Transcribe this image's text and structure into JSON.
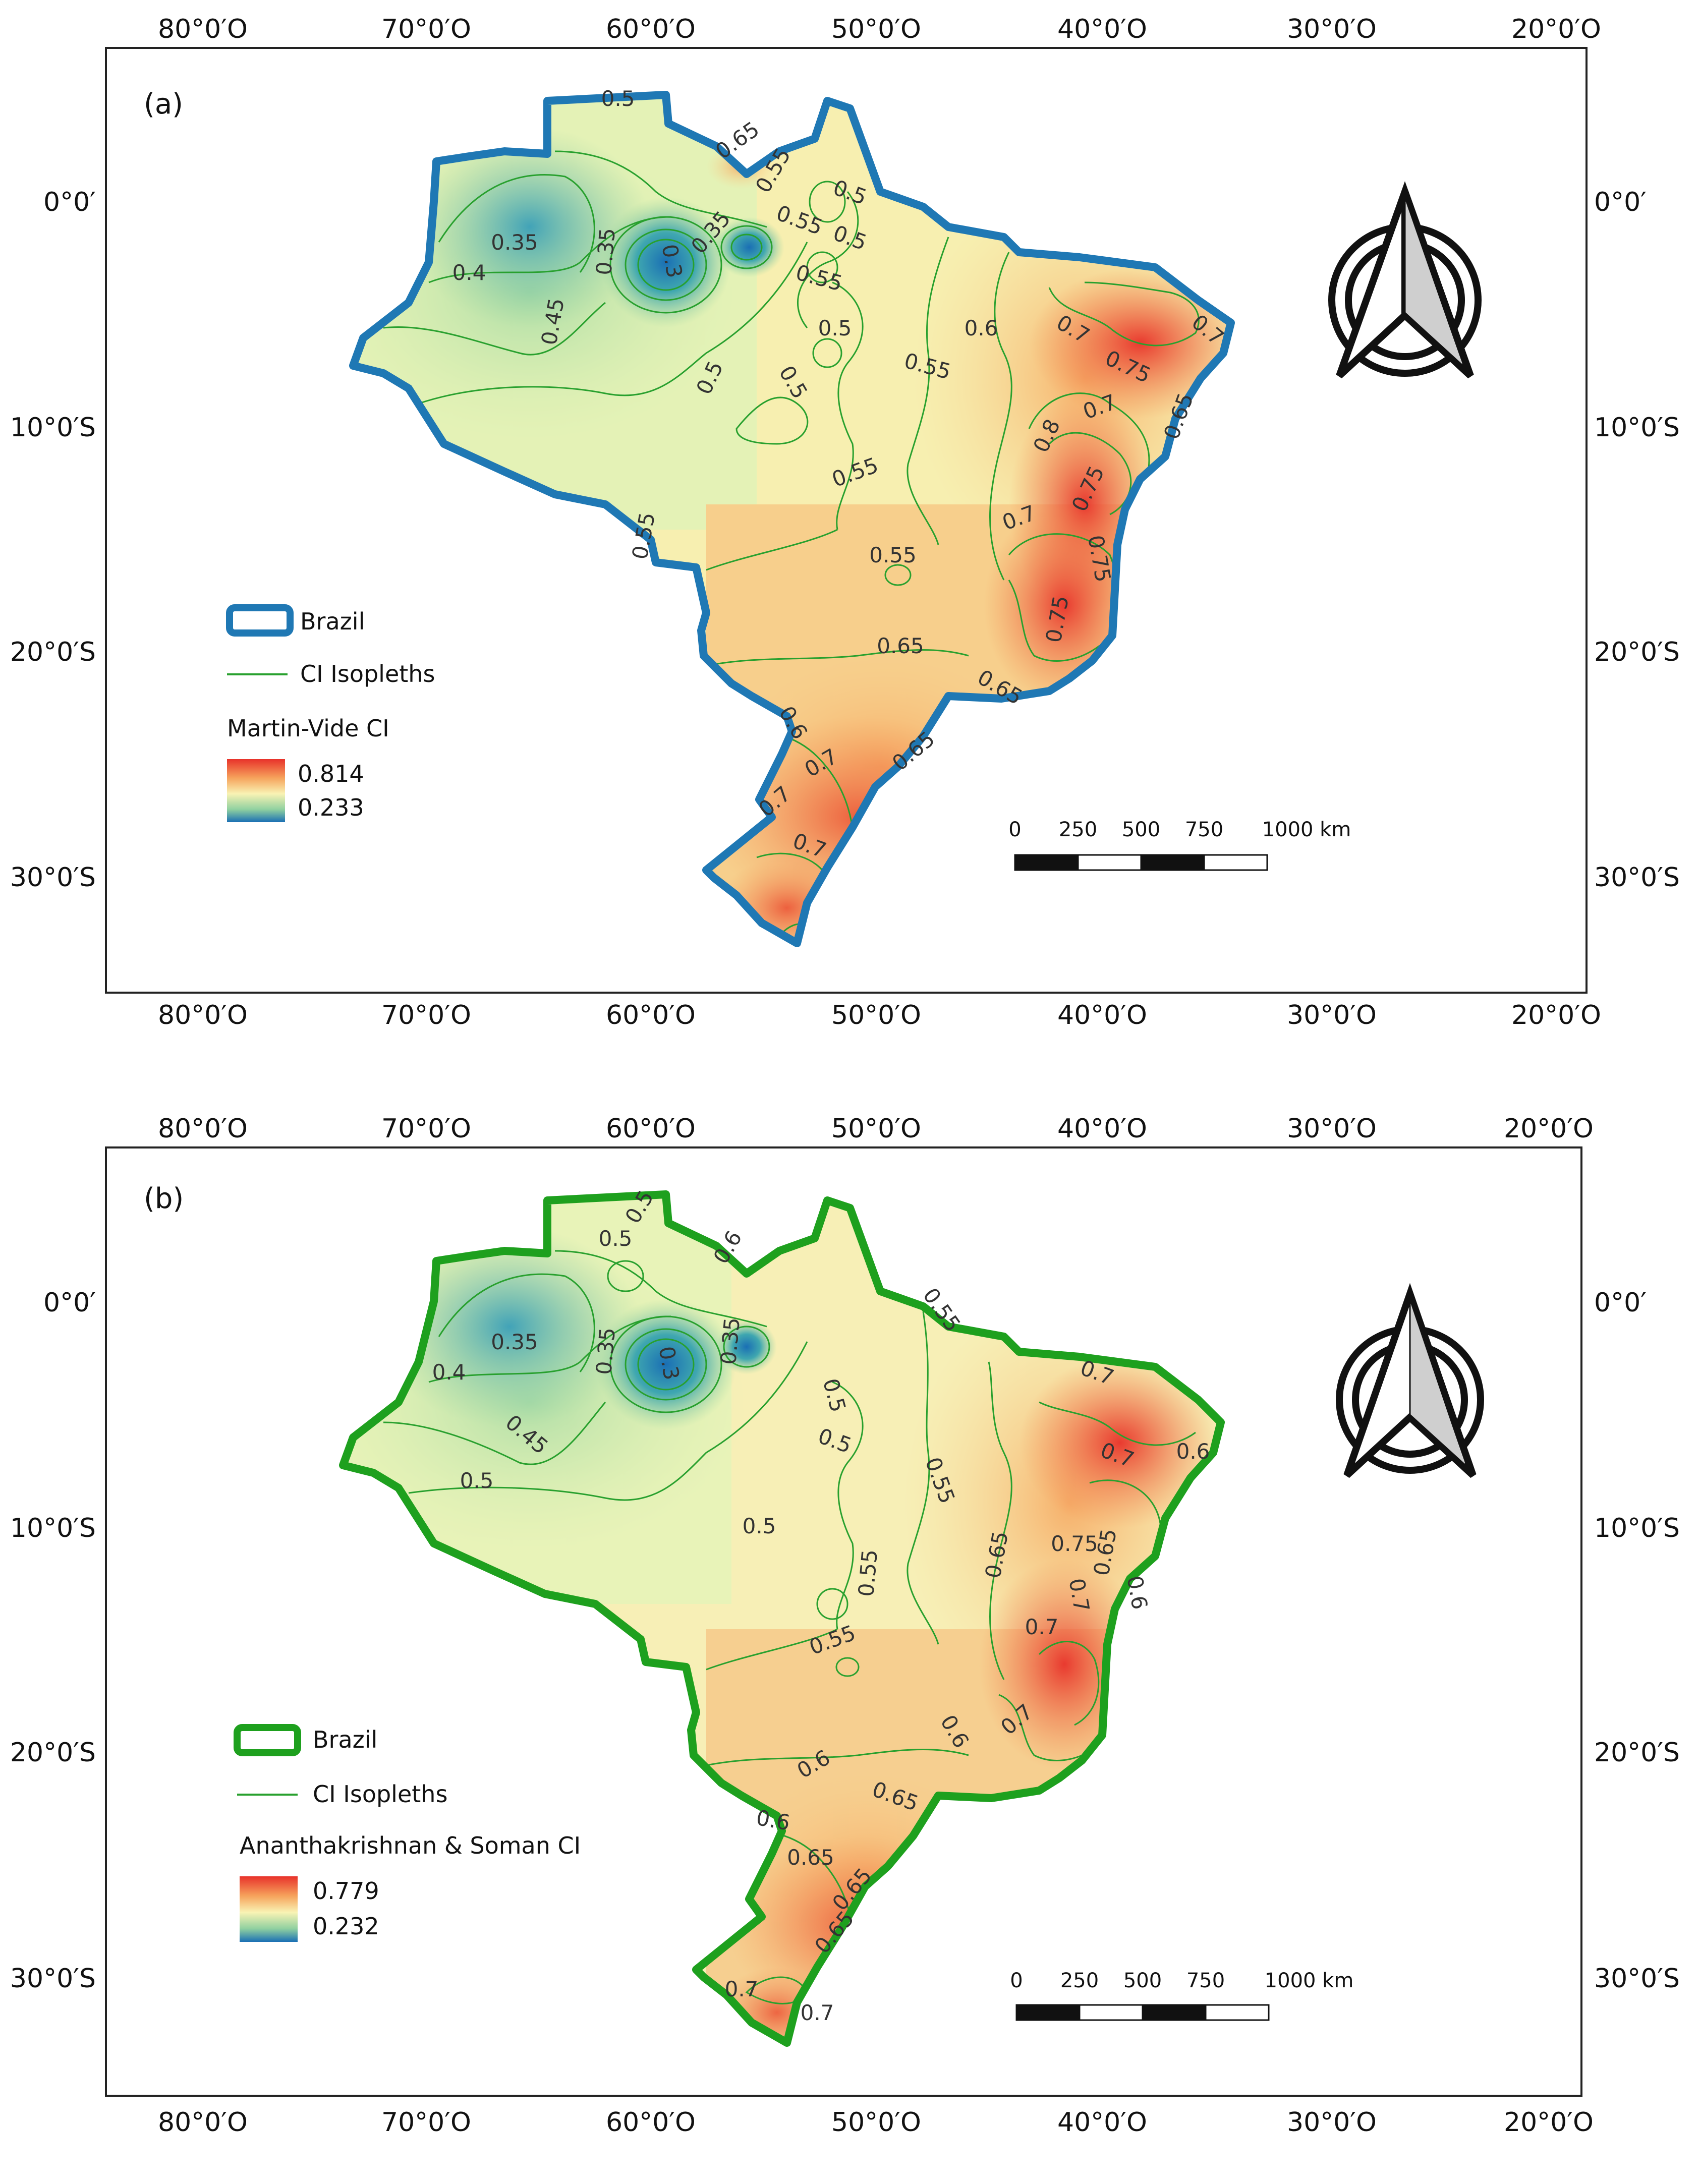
{
  "axis_labels": {
    "longitude": [
      "80°0′O",
      "70°0′O",
      "60°0′O",
      "50°0′O",
      "40°0′O",
      "30°0′O",
      "20°0′O"
    ],
    "latitude": [
      "0°0′",
      "10°0′S",
      "20°0′S",
      "30°0′S"
    ]
  },
  "panels": [
    {
      "id": "a",
      "panel_label": "(a)",
      "outline_color": "#1f78b4",
      "legend": {
        "boundary_label": "Brazil",
        "isopleth_label": "CI Isopleths",
        "index_title": "Martin-Vide CI",
        "index_max": "0.814",
        "index_min": "0.233"
      },
      "contour_labels": [
        "0.5",
        "0.65",
        "0.55",
        "0.5",
        "0.35",
        "0.55",
        "0.5",
        "0.55",
        "0.35",
        "0.3",
        "0.35",
        "0.4",
        "0.45",
        "0.5",
        "0.5",
        "0.5",
        "0.55",
        "0.6",
        "0.7",
        "0.75",
        "0.7",
        "0.7",
        "0.8",
        "0.75",
        "0.7",
        "0.75",
        "0.75",
        "0.65",
        "0.55",
        "0.55",
        "0.65",
        "0.65",
        "0.6",
        "0.7",
        "0.65",
        "0.7",
        "0.7",
        "0.55"
      ],
      "scale_bar": {
        "ticks": [
          "0",
          "250",
          "500",
          "750",
          "1000 km"
        ]
      }
    },
    {
      "id": "b",
      "panel_label": "(b)",
      "outline_color": "#1ea01e",
      "legend": {
        "boundary_label": "Brazil",
        "isopleth_label": "CI Isopleths",
        "index_title": "Ananthakrishnan & Soman CI",
        "index_max": "0.779",
        "index_min": "0.232"
      },
      "contour_labels": [
        "0.5",
        "0.5",
        "0.6",
        "0.35",
        "0.35",
        "0.3",
        "0.35",
        "0.4",
        "0.45",
        "0.5",
        "0.5",
        "0.5",
        "0.5",
        "0.55",
        "0.55",
        "0.55",
        "0.55",
        "0.7",
        "0.7",
        "0.6",
        "0.75",
        "0.7",
        "0.65",
        "0.65",
        "0.6",
        "0.7",
        "0.7",
        "0.6",
        "0.6",
        "0.65",
        "0.6",
        "0.65",
        "0.65",
        "0.65",
        "0.7",
        "0.7"
      ],
      "scale_bar": {
        "ticks": [
          "0",
          "250",
          "500",
          "750",
          "1000 km"
        ]
      }
    }
  ],
  "colors": {
    "ramp_high": "#e8322a",
    "ramp_mid_high": "#f6a35c",
    "ramp_mid": "#f9f3b4",
    "ramp_mid_low": "#8fd0a0",
    "ramp_low": "#1a6fb4",
    "isopleth": "#28a02e"
  }
}
